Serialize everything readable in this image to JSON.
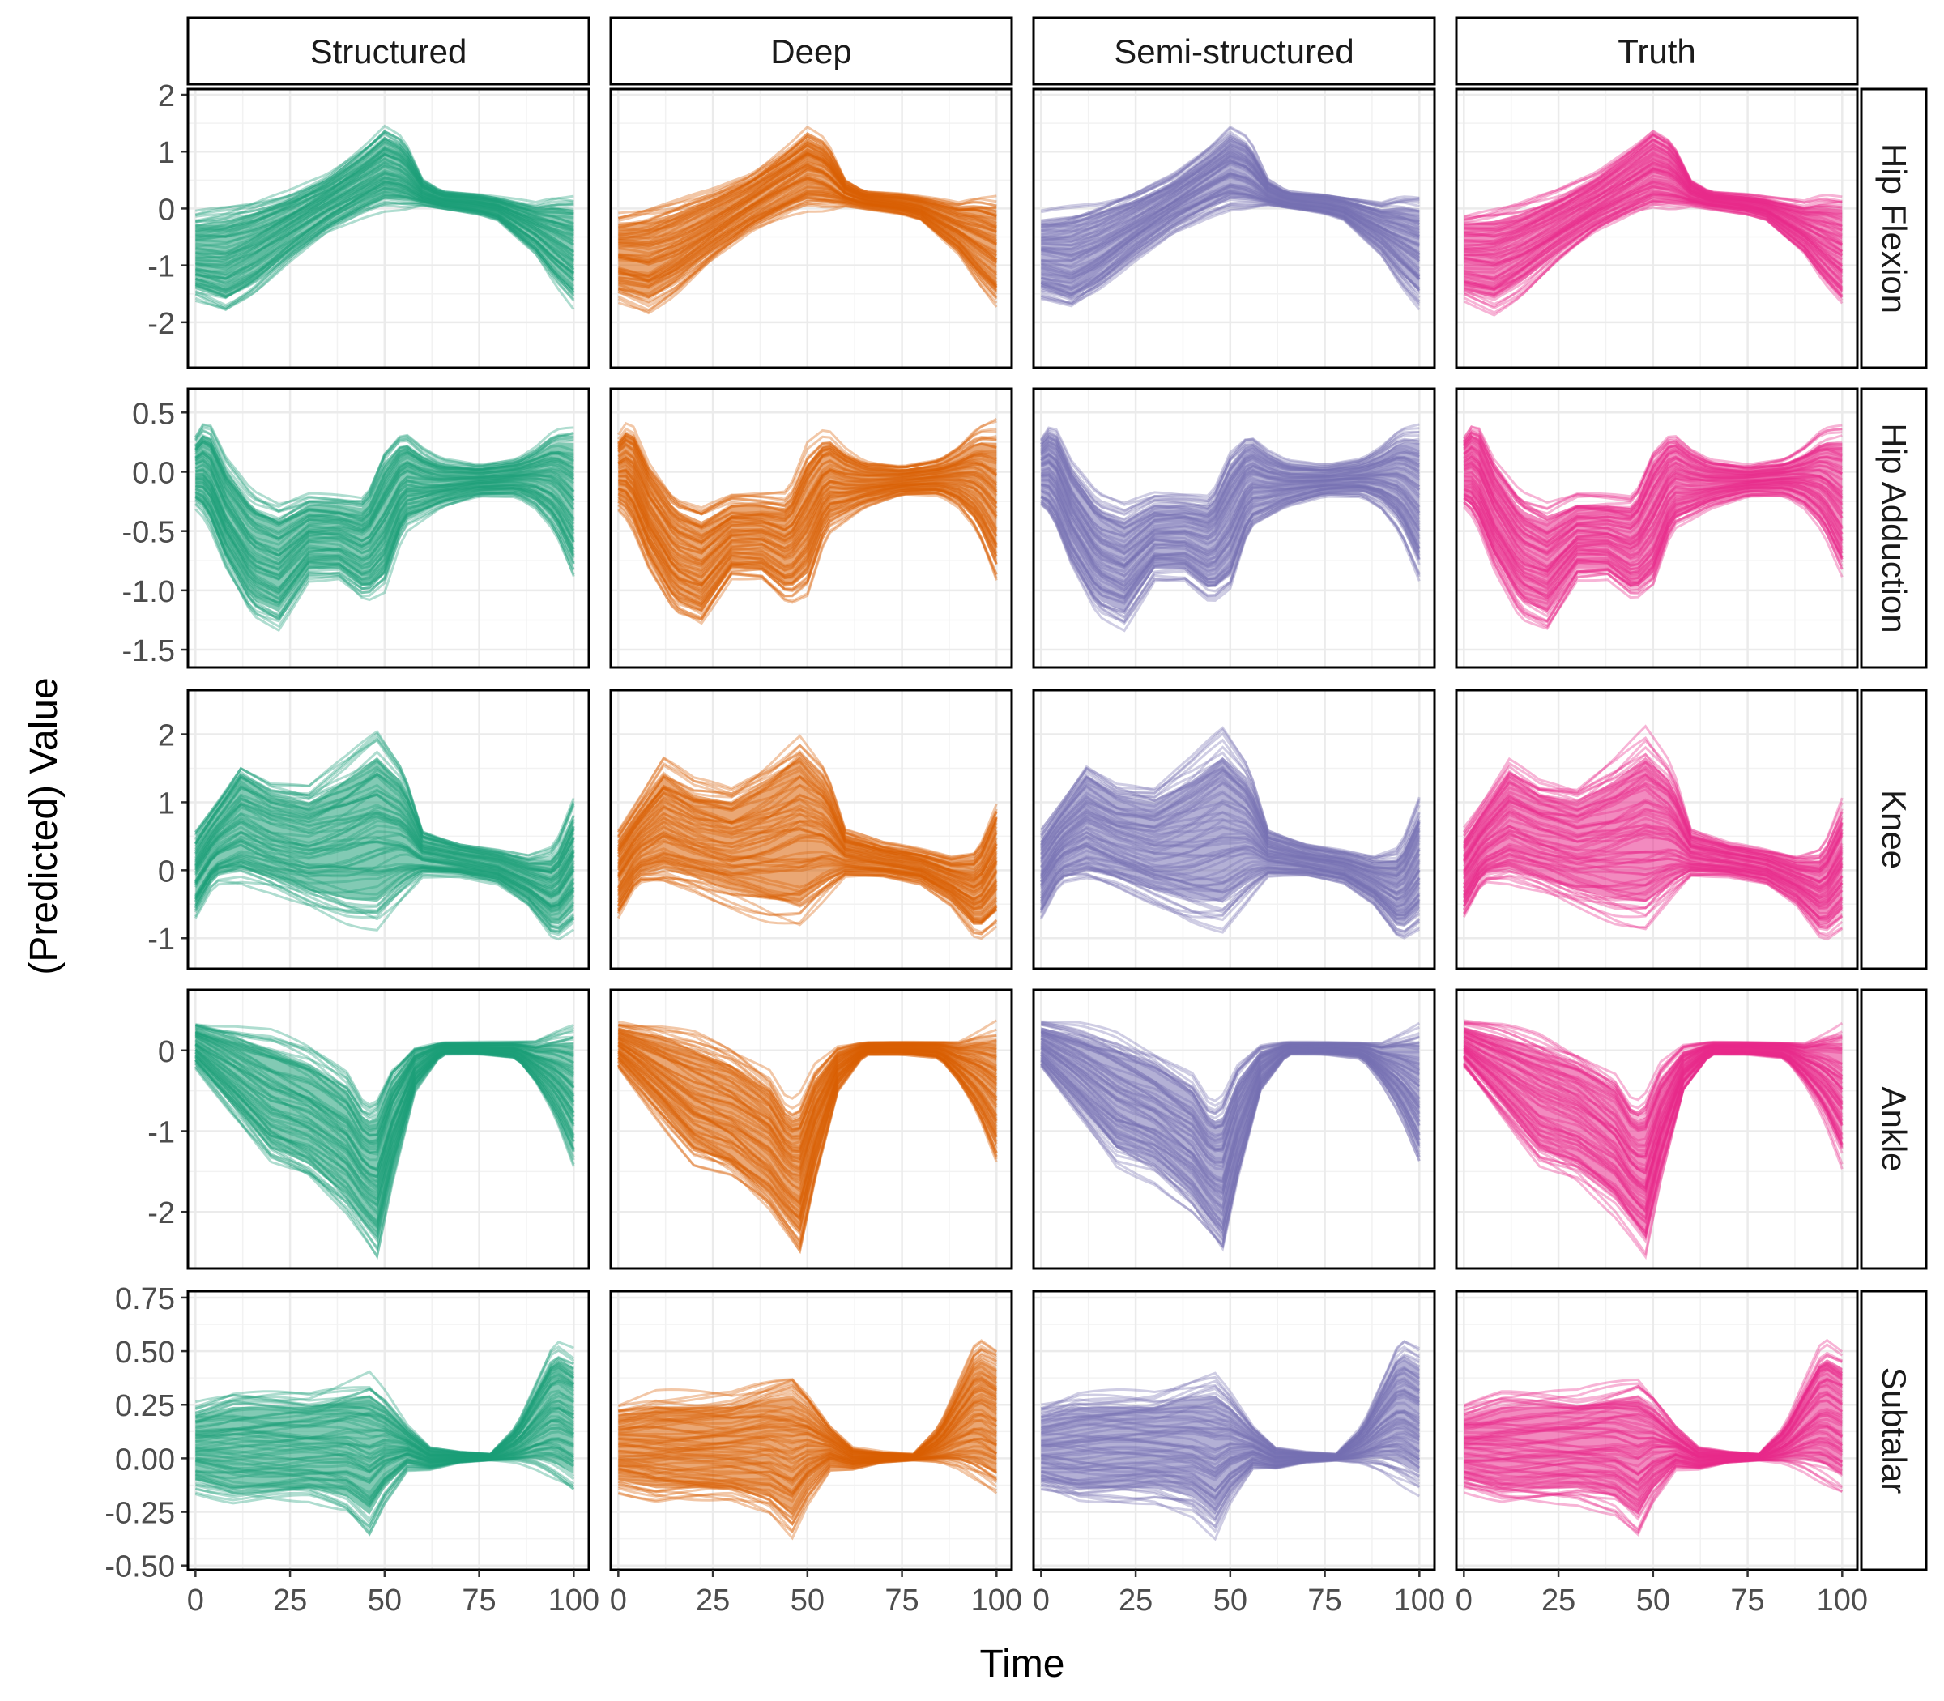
{
  "chart_data": {
    "type": "line",
    "layout": "facet-grid",
    "title": "",
    "xlabel": "Time",
    "ylabel": "(Predicted) Value",
    "columns": [
      {
        "name": "Structured",
        "color": "#1b9e77"
      },
      {
        "name": "Deep",
        "color": "#d95f02"
      },
      {
        "name": "Semi-structured",
        "color": "#7570b3"
      },
      {
        "name": "Truth",
        "color": "#e7298a"
      }
    ],
    "x_range": [
      -2,
      104
    ],
    "x_ticks": [
      0,
      25,
      50,
      75,
      100
    ],
    "x_tick_labels": [
      "0",
      "25",
      "50",
      "75",
      "100"
    ],
    "rows": [
      {
        "name": "Hip Flexion",
        "y_range": [
          -2.8,
          2.1
        ],
        "y_ticks": [
          -2,
          -1,
          0,
          1,
          2
        ],
        "y_tick_labels": [
          "-2",
          "-1",
          "0",
          "1",
          "2"
        ],
        "band": {
          "x": [
            0,
            8,
            15,
            25,
            35,
            45,
            50,
            55,
            60,
            65,
            75,
            80,
            90,
            95,
            100
          ],
          "lower": [
            -1.6,
            -1.8,
            -1.5,
            -0.9,
            -0.4,
            -0.1,
            0.0,
            0.0,
            0.05,
            0.0,
            -0.1,
            -0.2,
            -0.8,
            -1.3,
            -1.7
          ],
          "upper": [
            -0.1,
            0.0,
            0.1,
            0.3,
            0.6,
            1.1,
            1.4,
            1.2,
            0.5,
            0.3,
            0.25,
            0.2,
            0.1,
            0.2,
            0.2
          ]
        }
      },
      {
        "name": "Hip Adduction",
        "y_range": [
          -1.65,
          0.7
        ],
        "y_ticks": [
          -1.5,
          -1.0,
          -0.5,
          0.0,
          0.5
        ],
        "y_tick_labels": [
          "-1.5",
          "-1.0",
          "-0.5",
          "0.0",
          "0.5"
        ],
        "band": {
          "x": [
            0,
            3,
            8,
            15,
            22,
            30,
            38,
            45,
            50,
            55,
            60,
            65,
            75,
            85,
            90,
            95,
            100
          ],
          "lower": [
            -0.3,
            -0.4,
            -0.8,
            -1.2,
            -1.3,
            -0.9,
            -0.9,
            -1.1,
            -1.0,
            -0.5,
            -0.4,
            -0.3,
            -0.2,
            -0.2,
            -0.3,
            -0.5,
            -0.9
          ],
          "upper": [
            0.3,
            0.45,
            0.1,
            -0.2,
            -0.3,
            -0.2,
            -0.2,
            -0.2,
            0.2,
            0.35,
            0.2,
            0.1,
            0.05,
            0.1,
            0.2,
            0.35,
            0.4
          ]
        }
      },
      {
        "name": "Knee",
        "y_range": [
          -1.45,
          2.65
        ],
        "y_ticks": [
          -1,
          0,
          1,
          2
        ],
        "y_tick_labels": [
          "-1",
          "0",
          "1",
          "2"
        ],
        "band": {
          "x": [
            0,
            5,
            12,
            20,
            30,
            40,
            48,
            55,
            60,
            70,
            80,
            88,
            95,
            100
          ],
          "lower": [
            -0.7,
            -0.2,
            -0.2,
            -0.3,
            -0.5,
            -0.7,
            -0.8,
            -0.4,
            -0.1,
            -0.1,
            -0.2,
            -0.5,
            -1.0,
            -0.8
          ],
          "upper": [
            0.6,
            1.0,
            1.6,
            1.3,
            1.2,
            1.6,
            2.0,
            1.5,
            0.6,
            0.4,
            0.3,
            0.2,
            0.3,
            1.0
          ]
        }
      },
      {
        "name": "Ankle",
        "y_range": [
          -2.7,
          0.75
        ],
        "y_ticks": [
          -2,
          -1,
          0
        ],
        "y_tick_labels": [
          "-2",
          "-1",
          "0"
        ],
        "band": {
          "x": [
            0,
            10,
            20,
            30,
            40,
            45,
            48,
            52,
            58,
            65,
            75,
            85,
            90,
            95,
            100
          ],
          "lower": [
            -0.2,
            -0.8,
            -1.4,
            -1.6,
            -2.0,
            -2.3,
            -2.5,
            -1.6,
            -0.5,
            -0.05,
            -0.05,
            -0.1,
            -0.4,
            -0.8,
            -1.4
          ],
          "upper": [
            0.35,
            0.3,
            0.2,
            0.0,
            -0.3,
            -0.7,
            -0.6,
            -0.2,
            0.05,
            0.1,
            0.1,
            0.1,
            0.1,
            0.2,
            0.3
          ]
        }
      },
      {
        "name": "Subtalar",
        "y_range": [
          -0.52,
          0.78
        ],
        "y_ticks": [
          -0.5,
          -0.25,
          0.0,
          0.25,
          0.5,
          0.75
        ],
        "y_tick_labels": [
          "-0.50",
          "-0.25",
          "0.00",
          "0.25",
          "0.50",
          "0.75"
        ],
        "band": {
          "x": [
            0,
            10,
            20,
            30,
            40,
            46,
            50,
            56,
            62,
            70,
            78,
            85,
            90,
            95,
            100
          ],
          "lower": [
            -0.15,
            -0.2,
            -0.2,
            -0.2,
            -0.25,
            -0.35,
            -0.2,
            -0.05,
            -0.05,
            -0.02,
            -0.01,
            -0.02,
            -0.05,
            -0.1,
            -0.15
          ],
          "upper": [
            0.25,
            0.3,
            0.3,
            0.3,
            0.35,
            0.38,
            0.3,
            0.15,
            0.05,
            0.03,
            0.02,
            0.15,
            0.35,
            0.55,
            0.5
          ]
        }
      }
    ]
  }
}
